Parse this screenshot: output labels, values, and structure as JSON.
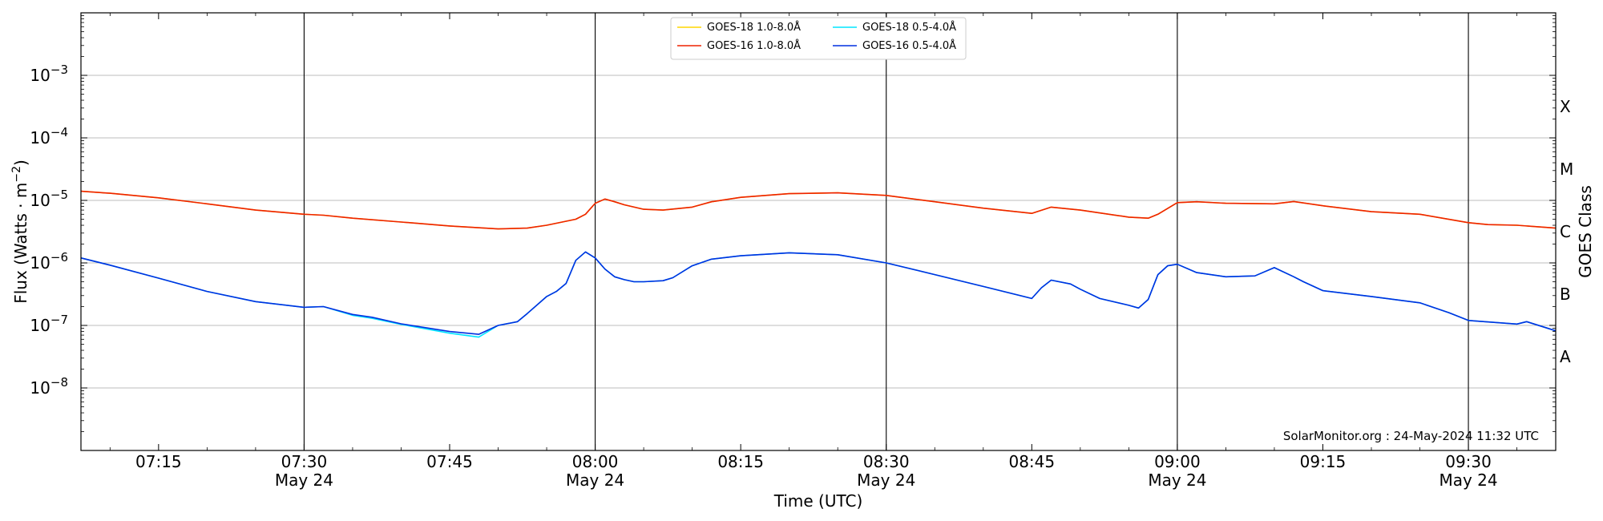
{
  "chart_data": {
    "type": "line",
    "xlabel": "Time (UTC)",
    "ylabel_prefix": "Flux (Watts · m",
    "ylabel_exp": "−2",
    "ylabel_suffix": ")",
    "right_label": "GOES Class",
    "credit": "SolarMonitor.org : 24-May-2024 11:32 UTC",
    "log_y": true,
    "grid_y": true,
    "legend_placement": "top-center",
    "x_range_minutes": [
      427,
      579
    ],
    "y_range_log10": [
      -9.0,
      -2.0
    ],
    "x_ticks": [
      {
        "t": 435,
        "label": "07:15",
        "date": ""
      },
      {
        "t": 450,
        "label": "07:30",
        "date": "May 24"
      },
      {
        "t": 465,
        "label": "07:45",
        "date": ""
      },
      {
        "t": 480,
        "label": "08:00",
        "date": "May 24"
      },
      {
        "t": 495,
        "label": "08:15",
        "date": ""
      },
      {
        "t": 510,
        "label": "08:30",
        "date": "May 24"
      },
      {
        "t": 525,
        "label": "08:45",
        "date": ""
      },
      {
        "t": 540,
        "label": "09:00",
        "date": "May 24"
      },
      {
        "t": 555,
        "label": "09:15",
        "date": ""
      },
      {
        "t": 570,
        "label": "09:30",
        "date": "May 24"
      }
    ],
    "vertical_lines_minutes": [
      450,
      480,
      510,
      540,
      570
    ],
    "y_ticks": [
      {
        "exp": -3,
        "base": "10",
        "sup": "−3"
      },
      {
        "exp": -4,
        "base": "10",
        "sup": "−4"
      },
      {
        "exp": -5,
        "base": "10",
        "sup": "−5"
      },
      {
        "exp": -6,
        "base": "10",
        "sup": "−6"
      },
      {
        "exp": -7,
        "base": "10",
        "sup": "−7"
      },
      {
        "exp": -8,
        "base": "10",
        "sup": "−8"
      }
    ],
    "goes_classes": [
      {
        "label": "X",
        "log10": -3.5
      },
      {
        "label": "M",
        "log10": -4.5
      },
      {
        "label": "C",
        "log10": -5.5
      },
      {
        "label": "B",
        "log10": -6.5
      },
      {
        "label": "A",
        "log10": -7.5
      }
    ],
    "series": [
      {
        "name": "GOES-18 1.0-8.0Å",
        "color": "#ffd700",
        "x": [
          427,
          430,
          435,
          440,
          445,
          450,
          452,
          455,
          460,
          465,
          470,
          473,
          475,
          478,
          479,
          480,
          481,
          482,
          483,
          485,
          487,
          490,
          492,
          495,
          500,
          505,
          510,
          515,
          520,
          525,
          527,
          530,
          535,
          537,
          538,
          540,
          542,
          545,
          550,
          552,
          555,
          560,
          565,
          570,
          572,
          575,
          579
        ],
        "y": [
          1.4e-05,
          1.3e-05,
          1.1e-05,
          8.8e-06,
          7e-06,
          6e-06,
          5.8e-06,
          5.2e-06,
          4.5e-06,
          3.9e-06,
          3.5e-06,
          3.6e-06,
          4e-06,
          5e-06,
          6e-06,
          9e-06,
          1.05e-05,
          9.5e-06,
          8.5e-06,
          7.2e-06,
          7e-06,
          7.8e-06,
          9.5e-06,
          1.12e-05,
          1.28e-05,
          1.32e-05,
          1.2e-05,
          9.5e-06,
          7.5e-06,
          6.2e-06,
          7.8e-06,
          7e-06,
          5.4e-06,
          5.2e-06,
          6e-06,
          9.2e-06,
          9.5e-06,
          9e-06,
          8.8e-06,
          9.6e-06,
          8.2e-06,
          6.6e-06,
          6e-06,
          4.4e-06,
          4.1e-06,
          4e-06,
          3.6e-06
        ]
      },
      {
        "name": "GOES-16 1.0-8.0Å",
        "color": "#ee2200",
        "x": [
          427,
          430,
          435,
          440,
          445,
          450,
          452,
          455,
          460,
          465,
          470,
          473,
          475,
          478,
          479,
          480,
          481,
          482,
          483,
          485,
          487,
          490,
          492,
          495,
          500,
          505,
          510,
          515,
          520,
          525,
          527,
          530,
          535,
          537,
          538,
          540,
          542,
          545,
          550,
          552,
          555,
          560,
          565,
          570,
          572,
          575,
          579
        ],
        "y": [
          1.4e-05,
          1.3e-05,
          1.1e-05,
          8.8e-06,
          7e-06,
          6e-06,
          5.8e-06,
          5.2e-06,
          4.5e-06,
          3.9e-06,
          3.5e-06,
          3.6e-06,
          4e-06,
          5e-06,
          6e-06,
          9e-06,
          1.05e-05,
          9.5e-06,
          8.5e-06,
          7.2e-06,
          7e-06,
          7.8e-06,
          9.5e-06,
          1.12e-05,
          1.28e-05,
          1.32e-05,
          1.2e-05,
          9.5e-06,
          7.5e-06,
          6.2e-06,
          7.8e-06,
          7e-06,
          5.4e-06,
          5.2e-06,
          6e-06,
          9.2e-06,
          9.5e-06,
          9e-06,
          8.8e-06,
          9.6e-06,
          8.2e-06,
          6.6e-06,
          6e-06,
          4.4e-06,
          4.1e-06,
          4e-06,
          3.6e-06
        ]
      },
      {
        "name": "GOES-18 0.5-4.0Å",
        "color": "#00e5ff",
        "x": [
          427,
          430,
          435,
          440,
          445,
          450,
          452,
          455,
          457,
          460,
          465,
          468,
          470,
          472,
          473,
          475,
          476,
          477,
          478,
          479,
          480,
          481,
          482,
          483,
          484,
          485,
          487,
          488,
          490,
          492,
          495,
          500,
          505,
          510,
          515,
          520,
          525,
          526,
          527,
          529,
          530,
          532,
          535,
          536,
          537,
          538,
          539,
          540,
          542,
          545,
          548,
          550,
          552,
          553,
          555,
          560,
          565,
          568,
          570,
          575,
          576,
          579
        ],
        "y": [
          1.2e-06,
          9.2e-07,
          5.7e-07,
          3.5e-07,
          2.4e-07,
          1.95e-07,
          2e-07,
          1.45e-07,
          1.3e-07,
          1.04e-07,
          7.5e-08,
          6.5e-08,
          1e-07,
          1.15e-07,
          1.55e-07,
          2.9e-07,
          3.5e-07,
          4.7e-07,
          1.1e-06,
          1.5e-06,
          1.2e-06,
          8e-07,
          6e-07,
          5.4e-07,
          5e-07,
          5e-07,
          5.2e-07,
          5.8e-07,
          9e-07,
          1.15e-06,
          1.3e-06,
          1.45e-06,
          1.35e-06,
          1e-06,
          6.5e-07,
          4.2e-07,
          2.7e-07,
          4e-07,
          5.3e-07,
          4.6e-07,
          3.8e-07,
          2.7e-07,
          2.1e-07,
          1.9e-07,
          2.6e-07,
          6.5e-07,
          9e-07,
          9.5e-07,
          7e-07,
          6e-07,
          6.2e-07,
          8.4e-07,
          6e-07,
          5e-07,
          3.6e-07,
          2.9e-07,
          2.3e-07,
          1.6e-07,
          1.2e-07,
          1.05e-07,
          1.15e-07,
          8.2e-08
        ]
      },
      {
        "name": "GOES-16 0.5-4.0Å",
        "color": "#0030e0",
        "x": [
          427,
          430,
          435,
          440,
          445,
          450,
          452,
          455,
          457,
          460,
          465,
          468,
          470,
          472,
          473,
          475,
          476,
          477,
          478,
          479,
          480,
          481,
          482,
          483,
          484,
          485,
          487,
          488,
          490,
          492,
          495,
          500,
          505,
          510,
          515,
          520,
          525,
          526,
          527,
          529,
          530,
          532,
          535,
          536,
          537,
          538,
          539,
          540,
          542,
          545,
          548,
          550,
          552,
          553,
          555,
          560,
          565,
          568,
          570,
          575,
          576,
          579
        ],
        "y": [
          1.2e-06,
          9.2e-07,
          5.7e-07,
          3.5e-07,
          2.4e-07,
          1.95e-07,
          2e-07,
          1.5e-07,
          1.35e-07,
          1.06e-07,
          8e-08,
          7.2e-08,
          1e-07,
          1.15e-07,
          1.55e-07,
          2.9e-07,
          3.5e-07,
          4.7e-07,
          1.1e-06,
          1.5e-06,
          1.2e-06,
          8e-07,
          6e-07,
          5.4e-07,
          5e-07,
          5e-07,
          5.2e-07,
          5.8e-07,
          9e-07,
          1.15e-06,
          1.3e-06,
          1.45e-06,
          1.35e-06,
          1e-06,
          6.5e-07,
          4.2e-07,
          2.7e-07,
          4e-07,
          5.3e-07,
          4.6e-07,
          3.8e-07,
          2.7e-07,
          2.1e-07,
          1.9e-07,
          2.6e-07,
          6.5e-07,
          9e-07,
          9.5e-07,
          7e-07,
          6e-07,
          6.2e-07,
          8.4e-07,
          6e-07,
          5e-07,
          3.6e-07,
          2.9e-07,
          2.3e-07,
          1.6e-07,
          1.2e-07,
          1.05e-07,
          1.15e-07,
          8.2e-08
        ]
      }
    ]
  }
}
